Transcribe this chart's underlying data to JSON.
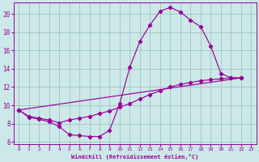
{
  "background_color": "#cce8e8",
  "line_color": "#990099",
  "grid_color": "#99bbbb",
  "xlabel": "Windchill (Refroidissement éolien,°C)",
  "xlim": [
    -0.5,
    23.5
  ],
  "ylim": [
    5.8,
    21.2
  ],
  "xticks": [
    0,
    1,
    2,
    3,
    4,
    5,
    6,
    7,
    8,
    9,
    10,
    11,
    12,
    13,
    14,
    15,
    16,
    17,
    18,
    19,
    20,
    21,
    22,
    23
  ],
  "yticks": [
    6,
    8,
    10,
    12,
    14,
    16,
    18,
    20
  ],
  "line1_x": [
    0,
    1,
    2,
    3,
    4,
    5,
    6,
    7,
    8,
    9,
    10,
    11,
    12,
    13,
    14,
    15,
    16,
    17,
    18,
    19,
    20,
    21,
    22
  ],
  "line1_y": [
    9.5,
    8.7,
    8.5,
    8.2,
    7.7,
    6.8,
    6.7,
    6.6,
    6.6,
    7.3,
    10.2,
    14.2,
    17.0,
    18.8,
    20.3,
    20.7,
    20.2,
    19.3,
    18.6,
    16.5,
    13.5,
    13.0,
    13.0
  ],
  "line2_x": [
    0,
    1,
    2,
    3,
    4,
    5,
    6,
    7,
    8,
    9,
    10,
    11,
    12,
    13,
    14,
    15,
    16,
    17,
    18,
    19,
    20,
    21,
    22
  ],
  "line2_y": [
    9.5,
    8.8,
    8.6,
    8.4,
    8.1,
    8.4,
    8.6,
    8.8,
    9.1,
    9.4,
    9.8,
    10.2,
    10.7,
    11.2,
    11.6,
    12.0,
    12.3,
    12.5,
    12.7,
    12.8,
    12.9,
    13.0,
    13.0
  ],
  "line3_x": [
    0,
    22
  ],
  "line3_y": [
    9.5,
    13.0
  ]
}
